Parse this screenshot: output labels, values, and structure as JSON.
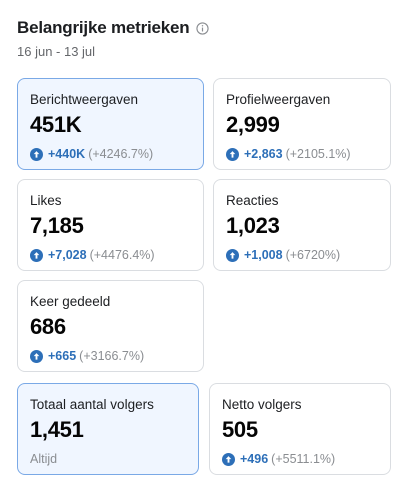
{
  "header": {
    "title": "Belangrijke metrieken",
    "date_range": "16 jun - 13 jul",
    "info_icon": "info-circle-icon"
  },
  "metrics": {
    "views": {
      "label": "Berichtweergaven",
      "value": "451K",
      "delta": "+440K",
      "pct": "(+4246.7%)"
    },
    "profile": {
      "label": "Profielweergaven",
      "value": "2,999",
      "delta": "+2,863",
      "pct": "(+2105.1%)"
    },
    "likes": {
      "label": "Likes",
      "value": "7,185",
      "delta": "+7,028",
      "pct": "(+4476.4%)"
    },
    "reactions": {
      "label": "Reacties",
      "value": "1,023",
      "delta": "+1,008",
      "pct": "(+6720%)"
    },
    "shared": {
      "label": "Keer gedeeld",
      "value": "686",
      "delta": "+665",
      "pct": "(+3166.7%)"
    },
    "followers": {
      "label": "Totaal aantal volgers",
      "value": "1,451",
      "note": "Altijd"
    },
    "net": {
      "label": "Netto volgers",
      "value": "505",
      "delta": "+496",
      "pct": "(+5511.1%)"
    }
  },
  "colors": {
    "accent": "#2d6fb8",
    "selected_bg": "#f0f6ff",
    "selected_border": "#7aa9e6",
    "muted": "#8a8d91"
  },
  "icons": {
    "trend": "arrow-up-circle-icon"
  }
}
